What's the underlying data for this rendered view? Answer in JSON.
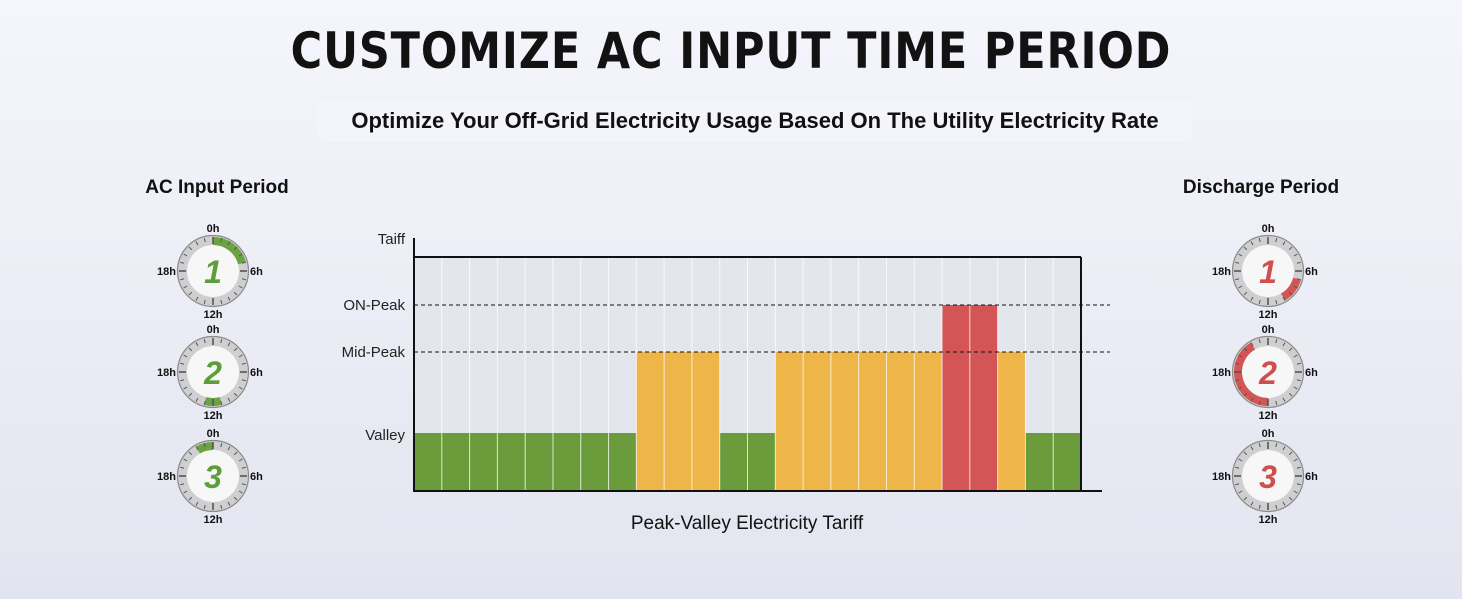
{
  "title": "CUSTOMIZE  AC INPUT TIME PERIOD",
  "subtitle": "Optimize Your Off-Grid Electricity Usage Based On The Utility Electricity Rate",
  "left_heading": "AC Input Period",
  "right_heading": "Discharge Period",
  "colors": {
    "valley": "#6b9c3c",
    "mid_peak": "#eeb548",
    "on_peak": "#d35555",
    "ac_arc": "#6aa341",
    "discharge_arc": "#d35555",
    "ac_number": "#5e9e39",
    "discharge_number": "#cf4f4f"
  },
  "ac_clocks": [
    {
      "number": "1",
      "labels": [
        "0h",
        "6h",
        "12h",
        "18h"
      ],
      "active_hours": [
        [
          0,
          5
        ]
      ]
    },
    {
      "number": "2",
      "labels": [
        "0h",
        "6h",
        "12h",
        "18h"
      ],
      "active_hours": [
        [
          11,
          13
        ]
      ]
    },
    {
      "number": "3",
      "labels": [
        "0h",
        "6h",
        "12h",
        "18h"
      ],
      "active_hours": [
        [
          22,
          24
        ]
      ]
    }
  ],
  "discharge_clocks": [
    {
      "number": "1",
      "labels": [
        "0h",
        "6h",
        "12h",
        "18h"
      ],
      "active_hours": [
        [
          7,
          10
        ]
      ]
    },
    {
      "number": "2",
      "labels": [
        "0h",
        "6h",
        "12h",
        "18h"
      ],
      "active_hours": [
        [
          12,
          22
        ]
      ]
    },
    {
      "number": "3",
      "labels": [
        "0h",
        "6h",
        "12h",
        "18h"
      ],
      "active_hours": []
    }
  ],
  "chart_data": {
    "type": "bar",
    "title": "",
    "xlabel": "Peak-Valley Electricity Tariff",
    "ylabel": "Taiff",
    "y_levels": [
      "Valley",
      "Mid-Peak",
      "ON-Peak"
    ],
    "x_units": 24,
    "values": [
      "Valley",
      "Valley",
      "Valley",
      "Valley",
      "Valley",
      "Valley",
      "Valley",
      "Valley",
      "Mid-Peak",
      "Mid-Peak",
      "Mid-Peak",
      "Valley",
      "Valley",
      "Mid-Peak",
      "Mid-Peak",
      "Mid-Peak",
      "Mid-Peak",
      "Mid-Peak",
      "Mid-Peak",
      "ON-Peak",
      "ON-Peak",
      "Mid-Peak",
      "Valley",
      "Valley"
    ],
    "grid": true
  }
}
